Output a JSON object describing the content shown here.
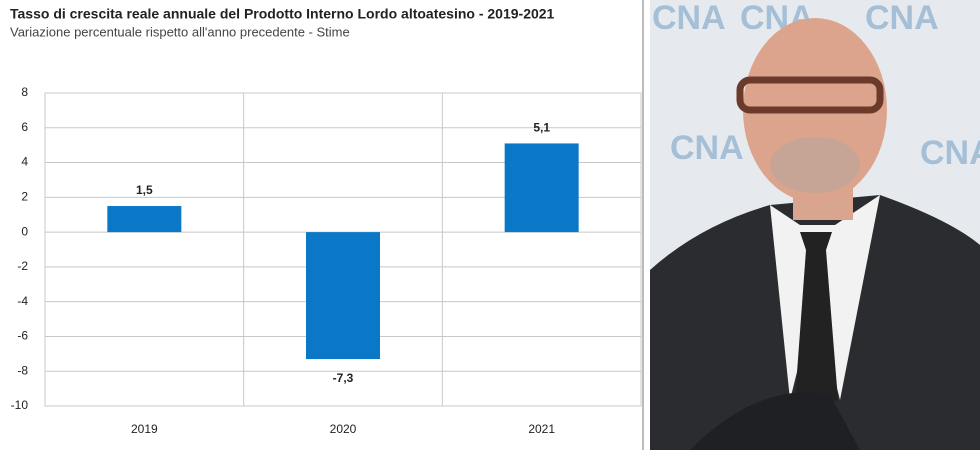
{
  "chart_data": {
    "type": "bar",
    "title": "Tasso di crescita  reale annuale del Prodotto Interno Lordo altoatesino - 2019-2021",
    "subtitle": "Variazione percentuale rispetto all'anno precedente - Stime",
    "categories": [
      "2019",
      "2020",
      "2021"
    ],
    "values": [
      1.5,
      -7.3,
      5.1
    ],
    "value_labels": [
      "1,5",
      "-7,3",
      "5,1"
    ],
    "color": "#0a78c6",
    "ylim": [
      -10,
      8
    ],
    "yticks": [
      -10,
      -8,
      -6,
      -4,
      -2,
      0,
      2,
      4,
      6,
      8
    ],
    "grid": true
  },
  "photo": {
    "logo": "CNA"
  }
}
